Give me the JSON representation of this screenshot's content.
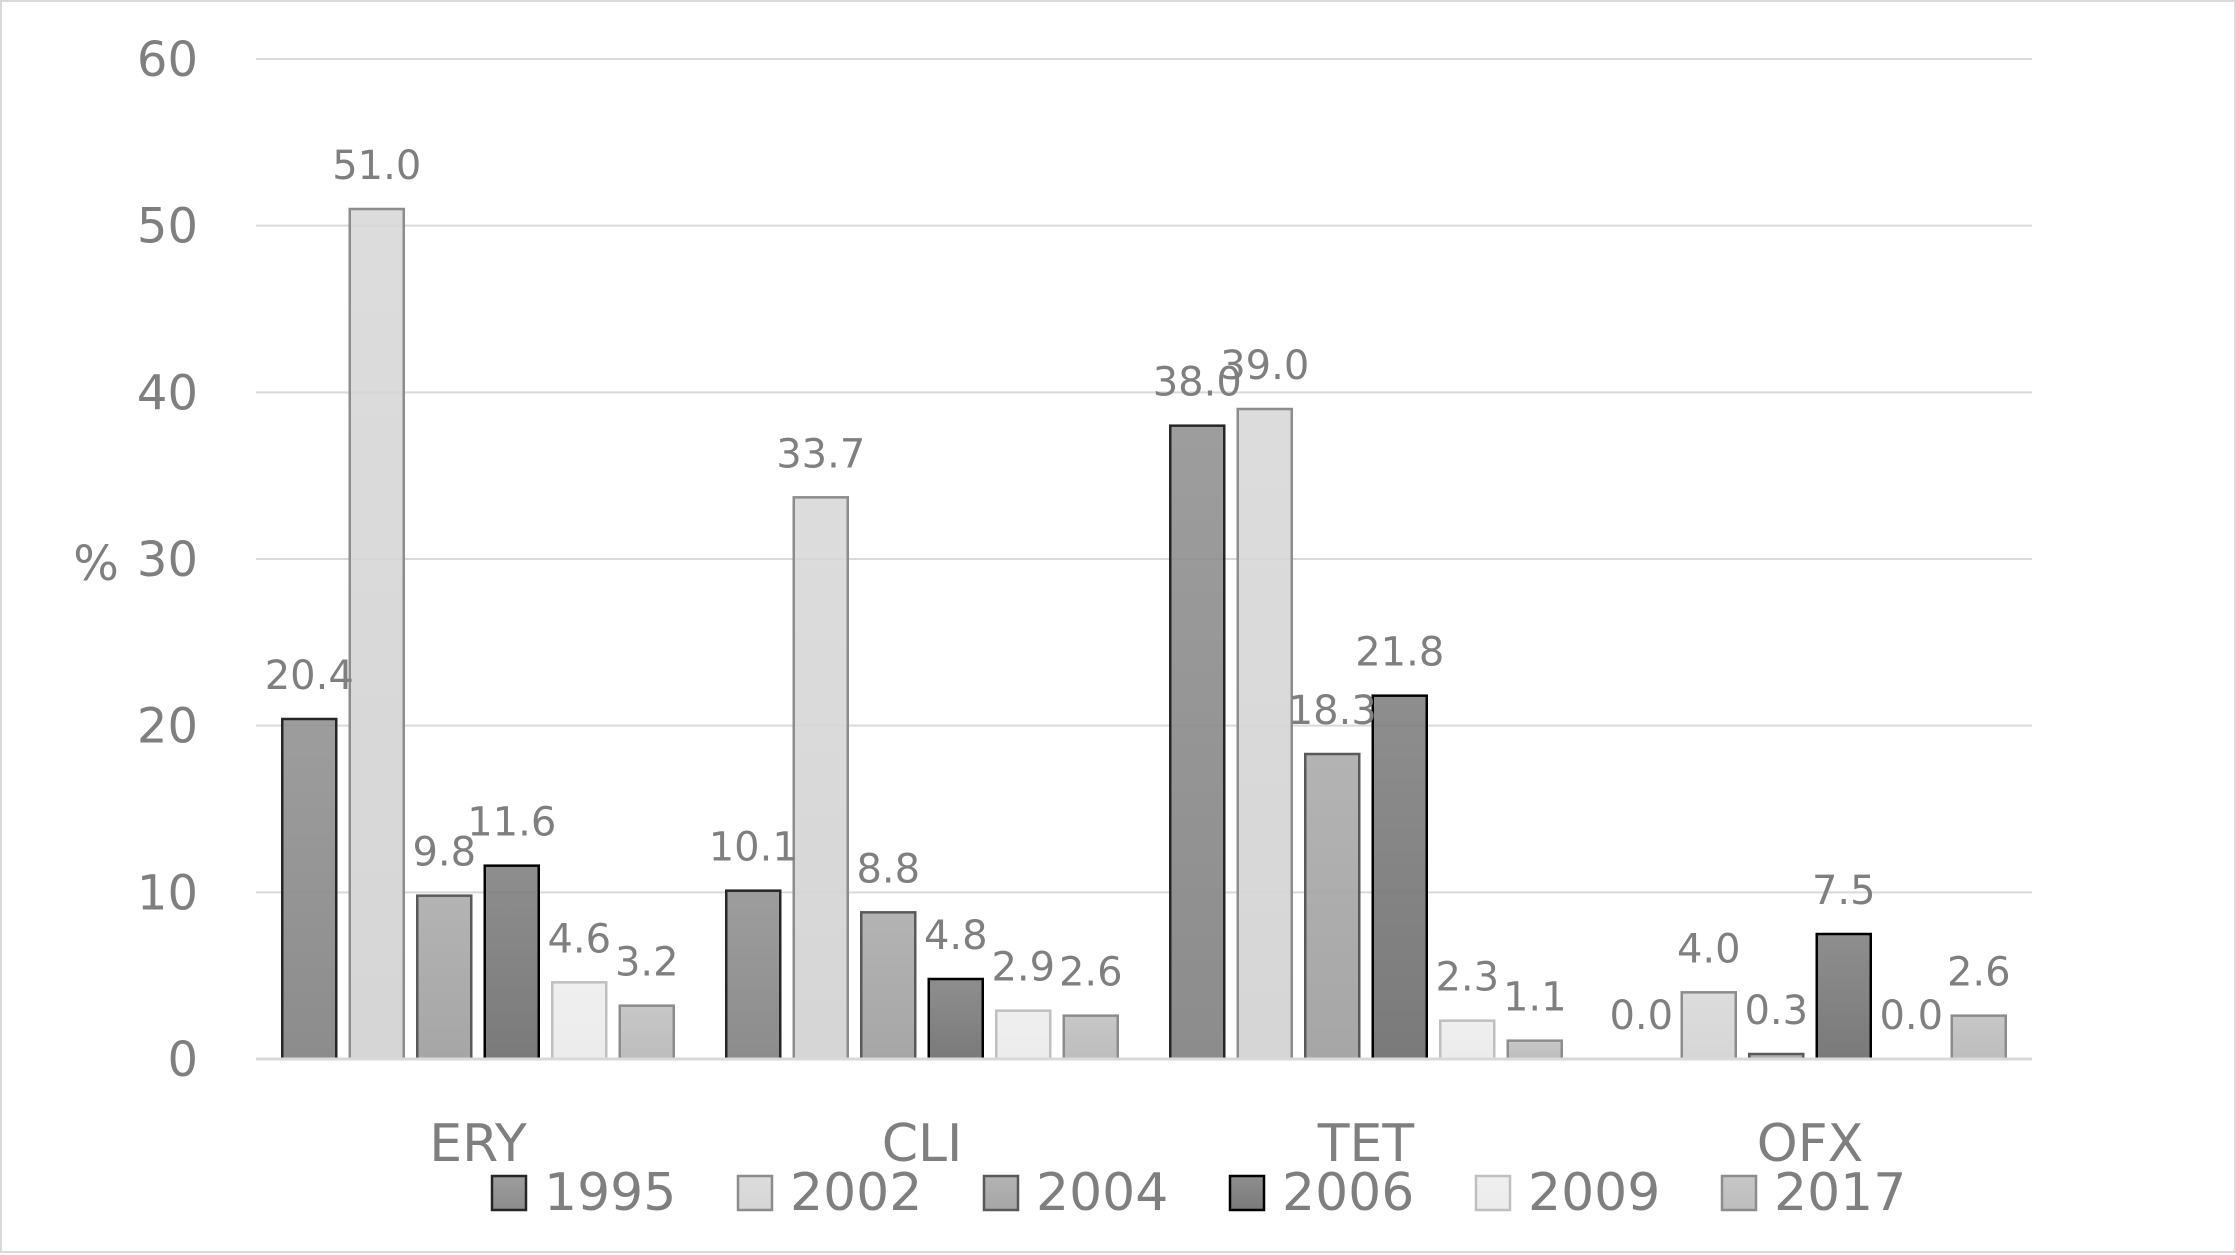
{
  "chart_data": {
    "type": "bar",
    "ylabel": "%",
    "xlabel": "",
    "ylim": [
      0,
      60
    ],
    "yticks": [
      "0",
      "10",
      "20",
      "30",
      "40",
      "50",
      "60"
    ],
    "grid": true,
    "legend_position": "bottom",
    "categories": [
      "ERY",
      "CLI",
      "TET",
      "OFX"
    ],
    "series": [
      {
        "name": "1995",
        "values": [
          20.4,
          10.1,
          38.0,
          0.0
        ],
        "labels": [
          "20.4",
          "10.1",
          "38.0",
          "0.0"
        ],
        "color": "#8c8c8c",
        "stroke": "#262626"
      },
      {
        "name": "2002",
        "values": [
          51.0,
          33.7,
          39.0,
          4.0
        ],
        "labels": [
          "51.0",
          "33.7",
          "39.0",
          "4.0"
        ],
        "color": "#d6d6d6",
        "stroke": "#8c8c8c"
      },
      {
        "name": "2004",
        "values": [
          9.8,
          8.8,
          18.3,
          0.3
        ],
        "labels": [
          "9.8",
          "8.8",
          "18.3",
          "0.3"
        ],
        "color": "#a6a6a6",
        "stroke": "#595959"
      },
      {
        "name": "2006",
        "values": [
          11.6,
          4.8,
          21.8,
          7.5
        ],
        "labels": [
          "11.6",
          "4.8",
          "21.8",
          "7.5"
        ],
        "color": "#7a7a7a",
        "stroke": "#000000"
      },
      {
        "name": "2009",
        "values": [
          4.6,
          2.9,
          2.3,
          0.0
        ],
        "labels": [
          "4.6",
          "2.9",
          "2.3",
          "0.0"
        ],
        "color": "#ececec",
        "stroke": "#bfbfbf"
      },
      {
        "name": "2017",
        "values": [
          3.2,
          2.6,
          1.1,
          2.6
        ],
        "labels": [
          "3.2",
          "2.6",
          "1.1",
          "2.6"
        ],
        "color": "#bdbdbd",
        "stroke": "#8c8c8c"
      }
    ]
  }
}
